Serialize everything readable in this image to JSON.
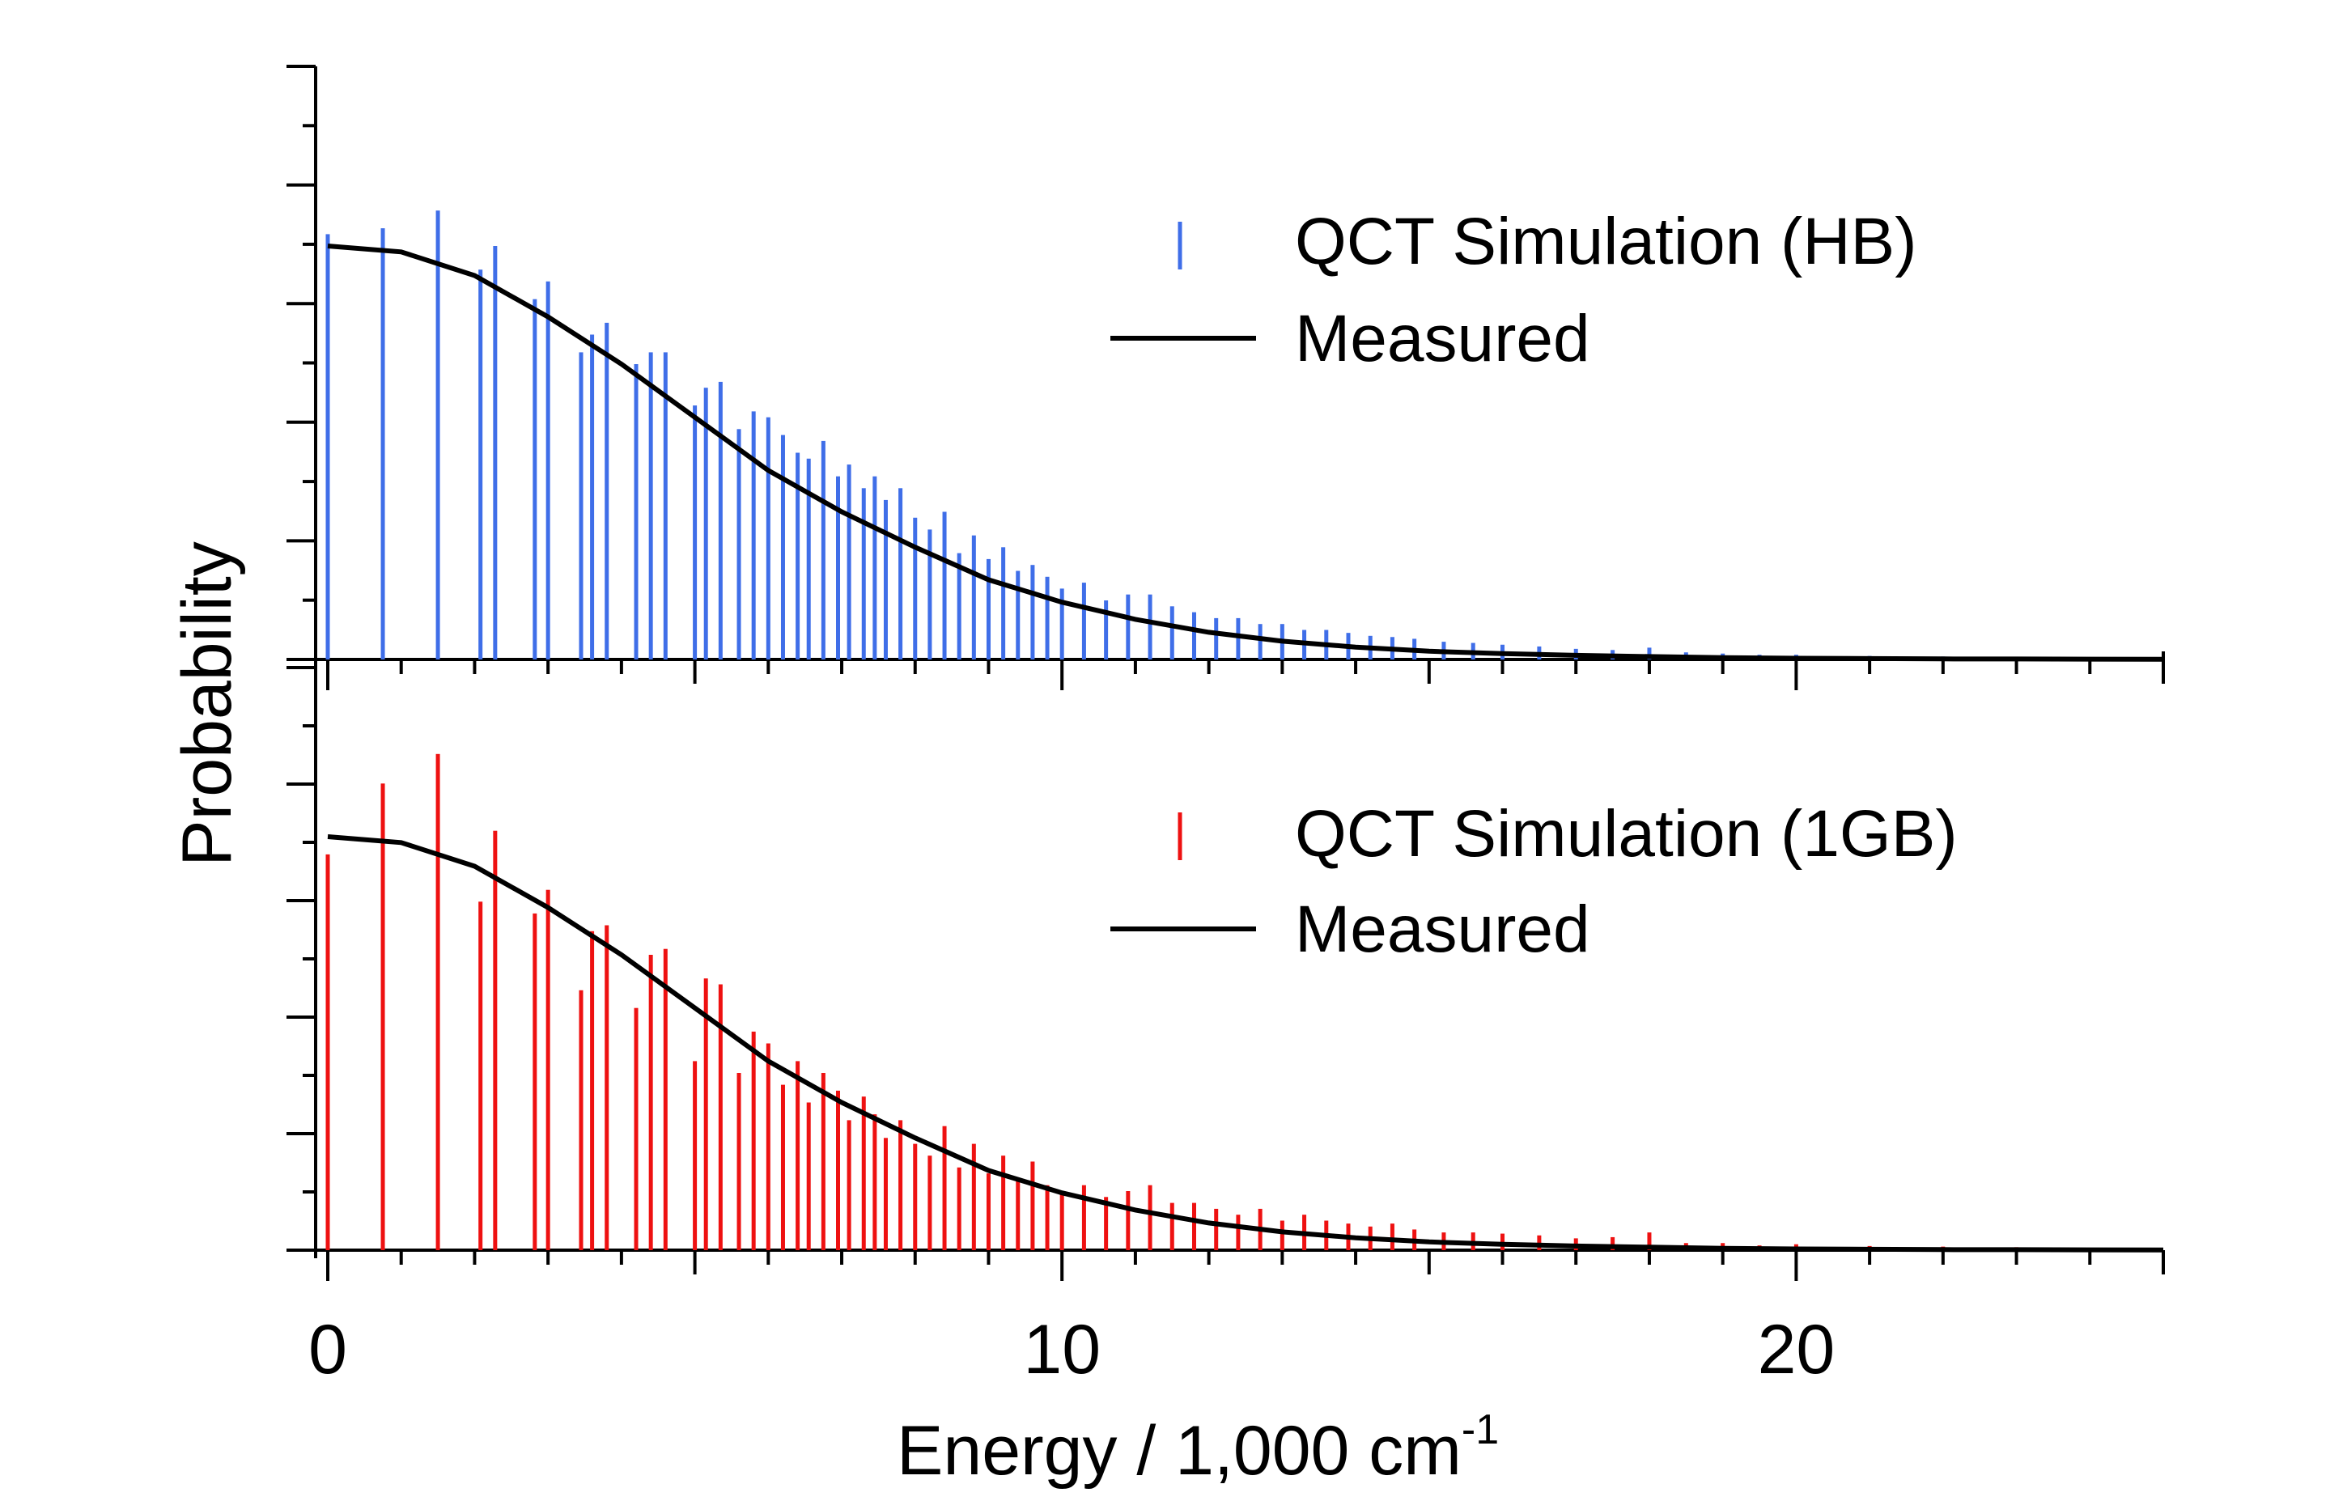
{
  "chart_data": {
    "type": "bar",
    "xlabel_main": "Energy / 1,000 cm",
    "xlabel_sup": "-1",
    "ylabel": "Probability",
    "xlim": [
      0,
      25
    ],
    "x_ticks": [
      0,
      10,
      20
    ],
    "x_tick_labels": [
      "0",
      "10",
      "20"
    ],
    "colors": {
      "blue": "#3f6ee8",
      "red": "#ee1111",
      "black": "#000000"
    },
    "measured": {
      "name": "Measured",
      "x": [
        0,
        1,
        2,
        3,
        4,
        5,
        6,
        7,
        8,
        9,
        10,
        11,
        12,
        13,
        14,
        15,
        16,
        17,
        18,
        19,
        20,
        21,
        22,
        23,
        24,
        25
      ],
      "y_top": [
        0.7,
        0.69,
        0.65,
        0.58,
        0.5,
        0.41,
        0.32,
        0.25,
        0.19,
        0.135,
        0.097,
        0.068,
        0.046,
        0.031,
        0.021,
        0.014,
        0.01,
        0.007,
        0.005,
        0.003,
        0.002,
        0.0015,
        0.001,
        0.0008,
        0.0005,
        0.0003
      ],
      "y_bottom": [
        0.7,
        0.69,
        0.65,
        0.58,
        0.5,
        0.41,
        0.32,
        0.25,
        0.19,
        0.135,
        0.097,
        0.068,
        0.046,
        0.031,
        0.021,
        0.014,
        0.01,
        0.007,
        0.005,
        0.003,
        0.002,
        0.0015,
        0.001,
        0.0008,
        0.0005,
        0.0003
      ]
    },
    "panels": [
      {
        "id": "top",
        "legend": {
          "sim_label": "QCT Simulation (HB)",
          "measured_label": "Measured"
        },
        "series": {
          "name": "QCT Simulation (HB)",
          "color": "#3f6ee8",
          "x": [
            0,
            0.75,
            1.5,
            2.08,
            2.28,
            2.82,
            3.0,
            3.45,
            3.6,
            3.8,
            4.2,
            4.4,
            4.6,
            5.0,
            5.15,
            5.35,
            5.6,
            5.8,
            6.0,
            6.2,
            6.4,
            6.55,
            6.75,
            6.95,
            7.1,
            7.3,
            7.45,
            7.6,
            7.8,
            8.0,
            8.2,
            8.4,
            8.6,
            8.8,
            9.0,
            9.2,
            9.4,
            9.6,
            9.8,
            10.0,
            10.3,
            10.6,
            10.9,
            11.2,
            11.5,
            11.8,
            12.1,
            12.4,
            12.7,
            13.0,
            13.3,
            13.6,
            13.9,
            14.2,
            14.5,
            14.8,
            15.2,
            15.6,
            16.0,
            16.5,
            17.0,
            17.5,
            18.0,
            18.5,
            19.0,
            19.5,
            20.0,
            21.0,
            22.0,
            23.0
          ],
          "values": [
            0.72,
            0.73,
            0.76,
            0.66,
            0.7,
            0.61,
            0.64,
            0.52,
            0.55,
            0.57,
            0.5,
            0.52,
            0.52,
            0.43,
            0.46,
            0.47,
            0.39,
            0.42,
            0.41,
            0.38,
            0.35,
            0.34,
            0.37,
            0.31,
            0.33,
            0.29,
            0.31,
            0.27,
            0.29,
            0.24,
            0.22,
            0.25,
            0.18,
            0.21,
            0.17,
            0.19,
            0.15,
            0.16,
            0.14,
            0.12,
            0.13,
            0.1,
            0.11,
            0.11,
            0.09,
            0.08,
            0.07,
            0.07,
            0.06,
            0.06,
            0.05,
            0.05,
            0.045,
            0.04,
            0.038,
            0.035,
            0.03,
            0.028,
            0.025,
            0.022,
            0.018,
            0.016,
            0.02,
            0.012,
            0.01,
            0.008,
            0.008,
            0.006,
            0.005,
            0.004
          ]
        }
      },
      {
        "id": "bottom",
        "legend": {
          "sim_label": "QCT Simulation (1GB)",
          "measured_label": "Measured"
        },
        "series": {
          "name": "QCT Simulation (1GB)",
          "color": "#ee1111",
          "x": [
            0,
            0.75,
            1.5,
            2.08,
            2.28,
            2.82,
            3.0,
            3.45,
            3.6,
            3.8,
            4.2,
            4.4,
            4.6,
            5.0,
            5.15,
            5.35,
            5.6,
            5.8,
            6.0,
            6.2,
            6.4,
            6.55,
            6.75,
            6.95,
            7.1,
            7.3,
            7.45,
            7.6,
            7.8,
            8.0,
            8.2,
            8.4,
            8.6,
            8.8,
            9.0,
            9.2,
            9.4,
            9.6,
            9.8,
            10.0,
            10.3,
            10.6,
            10.9,
            11.2,
            11.5,
            11.8,
            12.1,
            12.4,
            12.7,
            13.0,
            13.3,
            13.6,
            13.9,
            14.2,
            14.5,
            14.8,
            15.2,
            15.6,
            16.0,
            16.5,
            17.0,
            17.5,
            18.0,
            18.5,
            19.0,
            19.5,
            20.0,
            21.0,
            22.0,
            23.0
          ],
          "values": [
            0.67,
            0.79,
            0.84,
            0.59,
            0.71,
            0.57,
            0.61,
            0.44,
            0.54,
            0.55,
            0.41,
            0.5,
            0.51,
            0.32,
            0.46,
            0.45,
            0.3,
            0.37,
            0.35,
            0.28,
            0.32,
            0.25,
            0.3,
            0.27,
            0.22,
            0.26,
            0.23,
            0.19,
            0.22,
            0.18,
            0.16,
            0.21,
            0.14,
            0.18,
            0.13,
            0.16,
            0.12,
            0.15,
            0.11,
            0.1,
            0.11,
            0.09,
            0.1,
            0.11,
            0.08,
            0.08,
            0.07,
            0.06,
            0.07,
            0.05,
            0.06,
            0.05,
            0.045,
            0.04,
            0.045,
            0.035,
            0.03,
            0.03,
            0.028,
            0.025,
            0.02,
            0.022,
            0.03,
            0.012,
            0.012,
            0.008,
            0.01,
            0.007,
            0.006,
            0.005
          ]
        }
      }
    ]
  }
}
